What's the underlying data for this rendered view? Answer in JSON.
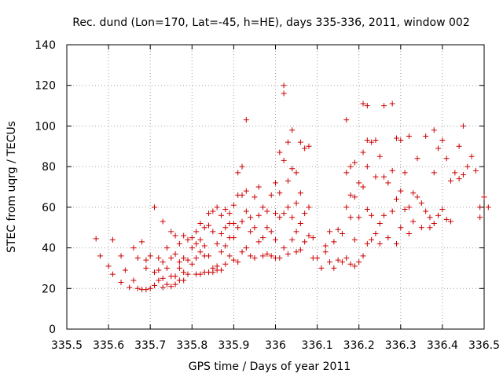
{
  "chart_data": {
    "type": "scatter",
    "title": "Rec. dund (Lon=170, Lat=-45, h=HE), days 335-336, 2011, window 002",
    "xlabel": "GPS time / Days of year 2011",
    "ylabel": "STEC from uqrg / TECUs",
    "xlim": [
      335.5,
      336.5
    ],
    "ylim": [
      0,
      140
    ],
    "x_ticks": [
      "335.5",
      "335.6",
      "335.7",
      "335.8",
      "335.9",
      "336",
      "336.1",
      "336.2",
      "336.3",
      "336.4",
      "336.5"
    ],
    "y_ticks": [
      "0",
      "20",
      "40",
      "60",
      "80",
      "100",
      "120",
      "140"
    ],
    "grid": true,
    "marker": "+",
    "marker_color": "#cc0000",
    "series": [
      {
        "points": [
          [
            335.57,
            44.5
          ],
          [
            335.58,
            36
          ],
          [
            335.6,
            31
          ],
          [
            335.61,
            44
          ],
          [
            335.61,
            27
          ],
          [
            335.63,
            36
          ],
          [
            335.63,
            23
          ],
          [
            335.64,
            29
          ],
          [
            335.65,
            20.5
          ],
          [
            335.66,
            40
          ],
          [
            335.66,
            24
          ],
          [
            335.67,
            35
          ],
          [
            335.67,
            20
          ],
          [
            335.68,
            43
          ],
          [
            335.68,
            19.5
          ],
          [
            335.69,
            34
          ],
          [
            335.69,
            30
          ],
          [
            335.69,
            19.5
          ],
          [
            335.7,
            36
          ],
          [
            335.7,
            20
          ],
          [
            335.71,
            60
          ],
          [
            335.71,
            28
          ],
          [
            335.71,
            21.5
          ],
          [
            335.72,
            35
          ],
          [
            335.72,
            29
          ],
          [
            335.72,
            24
          ],
          [
            335.73,
            53
          ],
          [
            335.73,
            33
          ],
          [
            335.73,
            25
          ],
          [
            335.73,
            20.5
          ],
          [
            335.74,
            40
          ],
          [
            335.74,
            30
          ],
          [
            335.74,
            22
          ],
          [
            335.75,
            48
          ],
          [
            335.75,
            35
          ],
          [
            335.75,
            26
          ],
          [
            335.75,
            21
          ],
          [
            335.76,
            46
          ],
          [
            335.76,
            37
          ],
          [
            335.76,
            26
          ],
          [
            335.76,
            22
          ],
          [
            335.77,
            42
          ],
          [
            335.77,
            33
          ],
          [
            335.77,
            30
          ],
          [
            335.77,
            24
          ],
          [
            335.78,
            46
          ],
          [
            335.78,
            35
          ],
          [
            335.78,
            28
          ],
          [
            335.78,
            24
          ],
          [
            335.79,
            44
          ],
          [
            335.79,
            34
          ],
          [
            335.79,
            27
          ],
          [
            335.8,
            45
          ],
          [
            335.8,
            40
          ],
          [
            335.8,
            32
          ],
          [
            335.81,
            48
          ],
          [
            335.81,
            42
          ],
          [
            335.81,
            35
          ],
          [
            335.81,
            27
          ],
          [
            335.82,
            52
          ],
          [
            335.82,
            44
          ],
          [
            335.82,
            38
          ],
          [
            335.82,
            27
          ],
          [
            335.83,
            50
          ],
          [
            335.83,
            41
          ],
          [
            335.83,
            36
          ],
          [
            335.83,
            28
          ],
          [
            335.84,
            57
          ],
          [
            335.84,
            51
          ],
          [
            335.84,
            36
          ],
          [
            335.84,
            28
          ],
          [
            335.85,
            58
          ],
          [
            335.85,
            48
          ],
          [
            335.85,
            30
          ],
          [
            335.85,
            28
          ],
          [
            335.86,
            60
          ],
          [
            335.86,
            42
          ],
          [
            335.86,
            31
          ],
          [
            335.86,
            29
          ],
          [
            335.87,
            56
          ],
          [
            335.87,
            47
          ],
          [
            335.87,
            38
          ],
          [
            335.87,
            29
          ],
          [
            335.88,
            59
          ],
          [
            335.88,
            50
          ],
          [
            335.88,
            41
          ],
          [
            335.88,
            32
          ],
          [
            335.89,
            57
          ],
          [
            335.89,
            52
          ],
          [
            335.89,
            45
          ],
          [
            335.89,
            36
          ],
          [
            335.9,
            61
          ],
          [
            335.9,
            52
          ],
          [
            335.9,
            45
          ],
          [
            335.9,
            34
          ],
          [
            335.91,
            77
          ],
          [
            335.91,
            66
          ],
          [
            335.91,
            50
          ],
          [
            335.91,
            33
          ],
          [
            335.92,
            80
          ],
          [
            335.92,
            66
          ],
          [
            335.92,
            53
          ],
          [
            335.92,
            38
          ],
          [
            335.93,
            103
          ],
          [
            335.93,
            68
          ],
          [
            335.93,
            58
          ],
          [
            335.93,
            40
          ],
          [
            335.94,
            55
          ],
          [
            335.94,
            48
          ],
          [
            335.94,
            36
          ],
          [
            335.95,
            65
          ],
          [
            335.95,
            50
          ],
          [
            335.95,
            35
          ],
          [
            335.96,
            70
          ],
          [
            335.96,
            56
          ],
          [
            335.96,
            43
          ],
          [
            335.97,
            60
          ],
          [
            335.97,
            45
          ],
          [
            335.97,
            36
          ],
          [
            335.98,
            58
          ],
          [
            335.98,
            50
          ],
          [
            335.98,
            37
          ],
          [
            335.99,
            66
          ],
          [
            335.99,
            48
          ],
          [
            335.99,
            36
          ],
          [
            336.0,
            72
          ],
          [
            336.0,
            57
          ],
          [
            336.0,
            44
          ],
          [
            336.0,
            35
          ],
          [
            336.01,
            87
          ],
          [
            336.01,
            67
          ],
          [
            336.01,
            55
          ],
          [
            336.01,
            35
          ],
          [
            336.02,
            120
          ],
          [
            336.02,
            116
          ],
          [
            336.02,
            83
          ],
          [
            336.02,
            57
          ],
          [
            336.02,
            40
          ],
          [
            336.03,
            92
          ],
          [
            336.03,
            73
          ],
          [
            336.03,
            60
          ],
          [
            336.03,
            37
          ],
          [
            336.04,
            98
          ],
          [
            336.04,
            79
          ],
          [
            336.04,
            55
          ],
          [
            336.04,
            44
          ],
          [
            336.05,
            77
          ],
          [
            336.05,
            62
          ],
          [
            336.05,
            48
          ],
          [
            336.05,
            38
          ],
          [
            336.06,
            92
          ],
          [
            336.06,
            67
          ],
          [
            336.06,
            52
          ],
          [
            336.06,
            39
          ],
          [
            336.07,
            89
          ],
          [
            336.07,
            57
          ],
          [
            336.07,
            43
          ],
          [
            336.08,
            90
          ],
          [
            336.08,
            60
          ],
          [
            336.08,
            46
          ],
          [
            336.09,
            45
          ],
          [
            336.09,
            35
          ],
          [
            336.1,
            35
          ],
          [
            336.11,
            30
          ],
          [
            336.12,
            41
          ],
          [
            336.12,
            38
          ],
          [
            336.13,
            48
          ],
          [
            336.13,
            33
          ],
          [
            336.14,
            43
          ],
          [
            336.14,
            30
          ],
          [
            336.15,
            49
          ],
          [
            336.15,
            34
          ],
          [
            336.16,
            47
          ],
          [
            336.16,
            33
          ],
          [
            336.17,
            103
          ],
          [
            336.17,
            77
          ],
          [
            336.17,
            60
          ],
          [
            336.17,
            35
          ],
          [
            336.18,
            80
          ],
          [
            336.18,
            66
          ],
          [
            336.18,
            55
          ],
          [
            336.18,
            32
          ],
          [
            336.19,
            82
          ],
          [
            336.19,
            65
          ],
          [
            336.19,
            44
          ],
          [
            336.19,
            31
          ],
          [
            336.2,
            72
          ],
          [
            336.2,
            55
          ],
          [
            336.2,
            33
          ],
          [
            336.21,
            111
          ],
          [
            336.21,
            87
          ],
          [
            336.21,
            70
          ],
          [
            336.21,
            36
          ],
          [
            336.22,
            110
          ],
          [
            336.22,
            93
          ],
          [
            336.22,
            80
          ],
          [
            336.22,
            59
          ],
          [
            336.22,
            42
          ],
          [
            336.23,
            92
          ],
          [
            336.23,
            56
          ],
          [
            336.23,
            44
          ],
          [
            336.24,
            93
          ],
          [
            336.24,
            75
          ],
          [
            336.24,
            47
          ],
          [
            336.25,
            85
          ],
          [
            336.25,
            52
          ],
          [
            336.25,
            42
          ],
          [
            336.26,
            110
          ],
          [
            336.26,
            75
          ],
          [
            336.26,
            56
          ],
          [
            336.27,
            72
          ],
          [
            336.27,
            45
          ],
          [
            336.28,
            111
          ],
          [
            336.28,
            78
          ],
          [
            336.28,
            58
          ],
          [
            336.29,
            94
          ],
          [
            336.29,
            64
          ],
          [
            336.29,
            42
          ],
          [
            336.3,
            93
          ],
          [
            336.3,
            68
          ],
          [
            336.3,
            50
          ],
          [
            336.31,
            77
          ],
          [
            336.31,
            59
          ],
          [
            336.32,
            95
          ],
          [
            336.32,
            60
          ],
          [
            336.32,
            47
          ],
          [
            336.33,
            67
          ],
          [
            336.33,
            53
          ],
          [
            336.34,
            84
          ],
          [
            336.34,
            65
          ],
          [
            336.35,
            62
          ],
          [
            336.35,
            50
          ],
          [
            336.36,
            95
          ],
          [
            336.36,
            58
          ],
          [
            336.37,
            55
          ],
          [
            336.37,
            50
          ],
          [
            336.38,
            98
          ],
          [
            336.38,
            77
          ],
          [
            336.38,
            52
          ],
          [
            336.39,
            89
          ],
          [
            336.39,
            56
          ],
          [
            336.4,
            93
          ],
          [
            336.4,
            59
          ],
          [
            336.41,
            84
          ],
          [
            336.41,
            54
          ],
          [
            336.42,
            73
          ],
          [
            336.42,
            53
          ],
          [
            336.43,
            77
          ],
          [
            336.44,
            90
          ],
          [
            336.44,
            74
          ],
          [
            336.45,
            100
          ],
          [
            336.45,
            76
          ],
          [
            336.46,
            80
          ],
          [
            336.47,
            85
          ],
          [
            336.48,
            78
          ],
          [
            336.49,
            55
          ],
          [
            336.49,
            60
          ],
          [
            336.5,
            65
          ],
          [
            336.51,
            60
          ]
        ]
      }
    ]
  }
}
